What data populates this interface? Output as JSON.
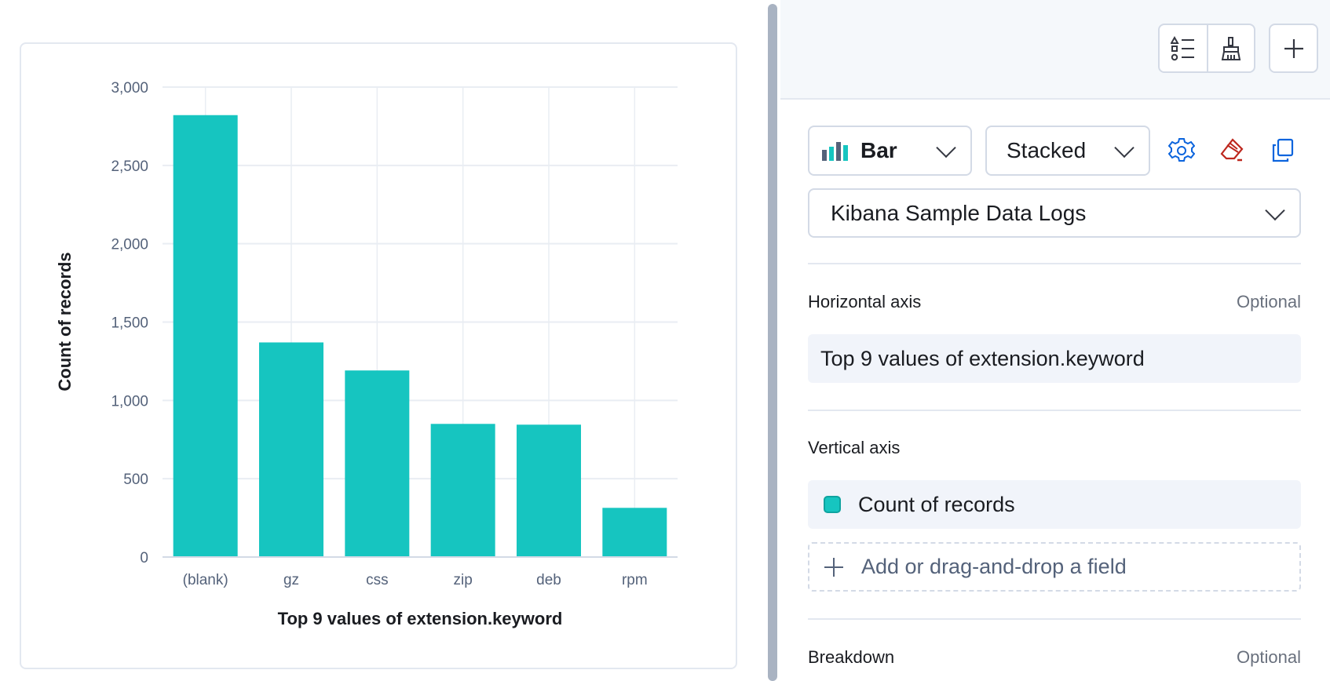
{
  "chart_data": {
    "type": "bar",
    "categories": [
      "(blank)",
      "gz",
      "css",
      "zip",
      "deb",
      "rpm"
    ],
    "values": [
      2821,
      1370,
      1191,
      850,
      845,
      314
    ],
    "xlabel": "Top 9 values of extension.keyword",
    "ylabel": "Count of records",
    "ylim": [
      0,
      3000
    ],
    "yticks": [
      0,
      500,
      1000,
      1500,
      2000,
      2500,
      3000
    ],
    "ytick_labels": [
      "0",
      "500",
      "1,000",
      "1,500",
      "2,000",
      "2,500",
      "3,000"
    ],
    "grid": true,
    "color": "#16c5c0"
  },
  "toolbar": {
    "legend_icon": "list-shapes-icon",
    "style_icon": "brush-icon",
    "add_icon": "plus-icon"
  },
  "layer": {
    "chart_type": "Bar",
    "stacking": "Stacked",
    "data_view": "Kibana Sample Data Logs",
    "settings_icon": "gear-icon",
    "clear_icon": "eraser-icon",
    "clone_icon": "copy-icon",
    "clear_color": "#bd271e",
    "action_color": "#0b64dd"
  },
  "dimensions": {
    "horizontal_label": "Horizontal axis",
    "horizontal_optional": "Optional",
    "horizontal_value": "Top 9 values of extension.keyword",
    "vertical_label": "Vertical axis",
    "vertical_value": "Count of records",
    "vertical_color": "#16c5c0",
    "add_field": "Add or drag-and-drop a field",
    "breakdown_label": "Breakdown",
    "breakdown_optional": "Optional"
  }
}
